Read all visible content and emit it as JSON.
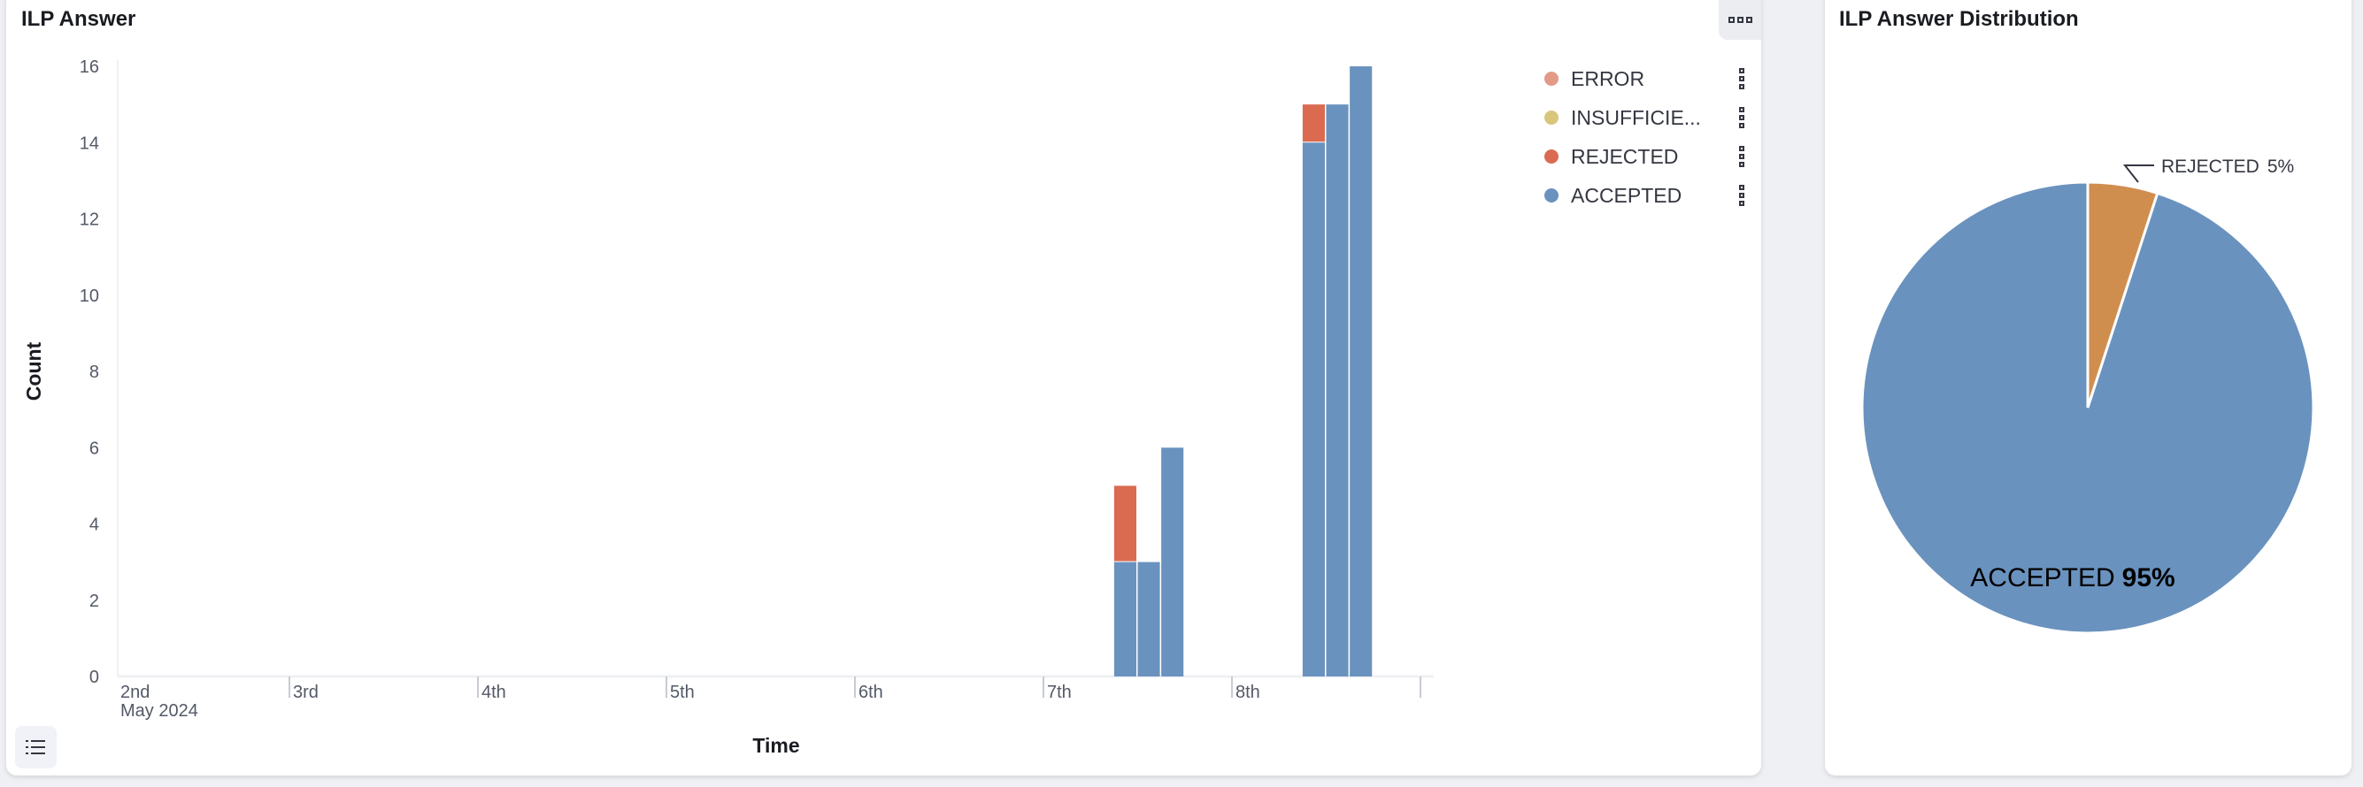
{
  "left_panel": {
    "title": "ILP Answer",
    "legend": [
      {
        "label": "ERROR",
        "color": "#e39a87"
      },
      {
        "label": "INSUFFICIE...",
        "color": "#d8c67b"
      },
      {
        "label": "REJECTED",
        "color": "#da6b51"
      },
      {
        "label": "ACCEPTED",
        "color": "#6a92be"
      }
    ],
    "menu_icon": "more-horizontal-icon",
    "legend_toggle_icon": "list-icon"
  },
  "right_panel": {
    "title": "ILP Answer Distribution"
  },
  "chart_data": [
    {
      "type": "bar",
      "stacked": true,
      "title": "ILP Answer",
      "xlabel": "Time",
      "ylabel": "Count",
      "ylim": [
        0,
        16
      ],
      "yticks": [
        0,
        2,
        4,
        6,
        8,
        10,
        12,
        14,
        16
      ],
      "xticks": [
        "2nd",
        "3rd",
        "4th",
        "5th",
        "6th",
        "7th",
        "8th"
      ],
      "xtick_sublabel": "May 2024",
      "legend_position": "right",
      "grid": false,
      "x": [
        "2024-05-07 09:00",
        "2024-05-07 12:00",
        "2024-05-07 15:00",
        "2024-05-08 09:00",
        "2024-05-08 12:00",
        "2024-05-08 15:00"
      ],
      "series": [
        {
          "name": "ACCEPTED",
          "color": "#6a92be",
          "values": [
            3,
            3,
            6,
            14,
            15,
            16
          ]
        },
        {
          "name": "REJECTED",
          "color": "#da6b51",
          "values": [
            2,
            0,
            0,
            1,
            0,
            0
          ]
        },
        {
          "name": "INSUFFICIE...",
          "color": "#d8c67b",
          "values": [
            0,
            0,
            0,
            0,
            0,
            0
          ]
        },
        {
          "name": "ERROR",
          "color": "#e39a87",
          "values": [
            0,
            0,
            0,
            0,
            0,
            0
          ]
        }
      ]
    },
    {
      "type": "pie",
      "title": "ILP Answer Distribution",
      "slices": [
        {
          "label": "REJECTED",
          "percent_label": "5%",
          "value": 5,
          "color": "#d08e4e"
        },
        {
          "label": "ACCEPTED",
          "percent_label": "95%",
          "value": 95,
          "color": "#6a92be"
        }
      ]
    }
  ]
}
